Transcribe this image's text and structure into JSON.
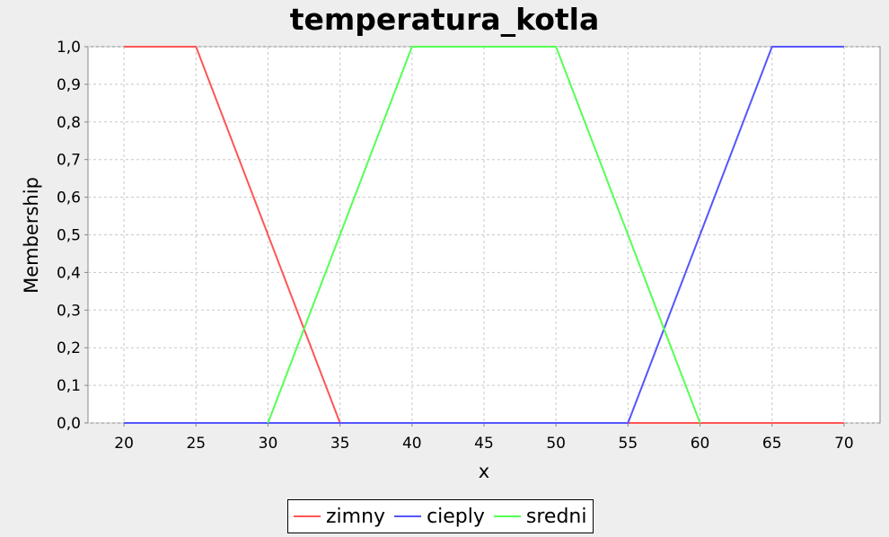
{
  "chart_data": {
    "type": "line",
    "title": "temperatura_kotla",
    "xlabel": "x",
    "ylabel": "Membership",
    "xlim": [
      17.5,
      72.5
    ],
    "ylim": [
      0,
      1.0
    ],
    "x_ticks": [
      "20",
      "25",
      "30",
      "35",
      "40",
      "45",
      "50",
      "55",
      "60",
      "65",
      "70"
    ],
    "y_ticks": [
      "0,0",
      "0,1",
      "0,2",
      "0,3",
      "0,4",
      "0,5",
      "0,6",
      "0,7",
      "0,8",
      "0,9",
      "1,0"
    ],
    "grid": true,
    "legend_position": "bottom",
    "series": [
      {
        "name": "zimny",
        "color": "#ff5555",
        "points": [
          [
            20,
            1.0
          ],
          [
            25,
            1.0
          ],
          [
            35,
            0.0
          ],
          [
            70,
            0.0
          ]
        ]
      },
      {
        "name": "cieply",
        "color": "#5555ff",
        "points": [
          [
            20,
            0.0
          ],
          [
            55,
            0.0
          ],
          [
            65,
            1.0
          ],
          [
            70,
            1.0
          ]
        ]
      },
      {
        "name": "sredni",
        "color": "#55ff55",
        "points": [
          [
            30,
            0.0
          ],
          [
            40,
            1.0
          ],
          [
            50,
            1.0
          ],
          [
            60,
            0.0
          ]
        ]
      }
    ]
  }
}
